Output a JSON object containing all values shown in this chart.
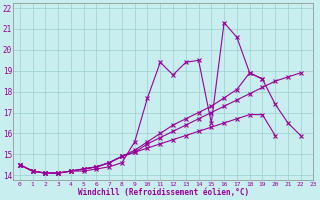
{
  "xlabel": "Windchill (Refroidissement éolien,°C)",
  "bg_color": "#c8eef0",
  "line_color": "#990099",
  "x_values": [
    0,
    1,
    2,
    3,
    4,
    5,
    6,
    7,
    8,
    9,
    10,
    11,
    12,
    13,
    14,
    15,
    16,
    17,
    18,
    19,
    20,
    21,
    22,
    23
  ],
  "line_jagged": [
    14.5,
    14.2,
    14.1,
    14.1,
    14.2,
    14.2,
    14.3,
    14.4,
    14.6,
    15.6,
    17.7,
    19.4,
    18.8,
    19.4,
    19.5,
    16.5,
    21.3,
    20.6,
    18.9,
    18.6,
    null,
    null,
    null,
    null
  ],
  "line_upper": [
    14.5,
    14.2,
    14.1,
    14.1,
    14.2,
    14.3,
    14.4,
    14.6,
    14.9,
    15.2,
    15.6,
    16.0,
    16.4,
    16.7,
    17.0,
    17.3,
    17.7,
    18.1,
    18.9,
    18.6,
    17.4,
    16.5,
    15.9,
    null
  ],
  "line_mid": [
    14.5,
    14.2,
    14.1,
    14.1,
    14.2,
    14.3,
    14.4,
    14.6,
    14.9,
    15.1,
    15.5,
    15.8,
    16.1,
    16.4,
    16.7,
    17.0,
    17.3,
    17.6,
    17.9,
    18.2,
    18.5,
    18.7,
    18.9,
    null
  ],
  "line_lower": [
    14.5,
    14.2,
    14.1,
    14.1,
    14.2,
    14.3,
    14.4,
    14.6,
    14.9,
    15.1,
    15.3,
    15.5,
    15.7,
    15.9,
    16.1,
    16.3,
    16.5,
    16.7,
    16.9,
    16.9,
    15.9,
    null,
    null,
    null
  ],
  "ylim": [
    13.75,
    22.25
  ],
  "xlim": [
    -0.5,
    23.0
  ],
  "yticks": [
    14,
    15,
    16,
    17,
    18,
    19,
    20,
    21,
    22
  ],
  "xticks": [
    0,
    1,
    2,
    3,
    4,
    5,
    6,
    7,
    8,
    9,
    10,
    11,
    12,
    13,
    14,
    15,
    16,
    17,
    18,
    19,
    20,
    21,
    22,
    23
  ]
}
